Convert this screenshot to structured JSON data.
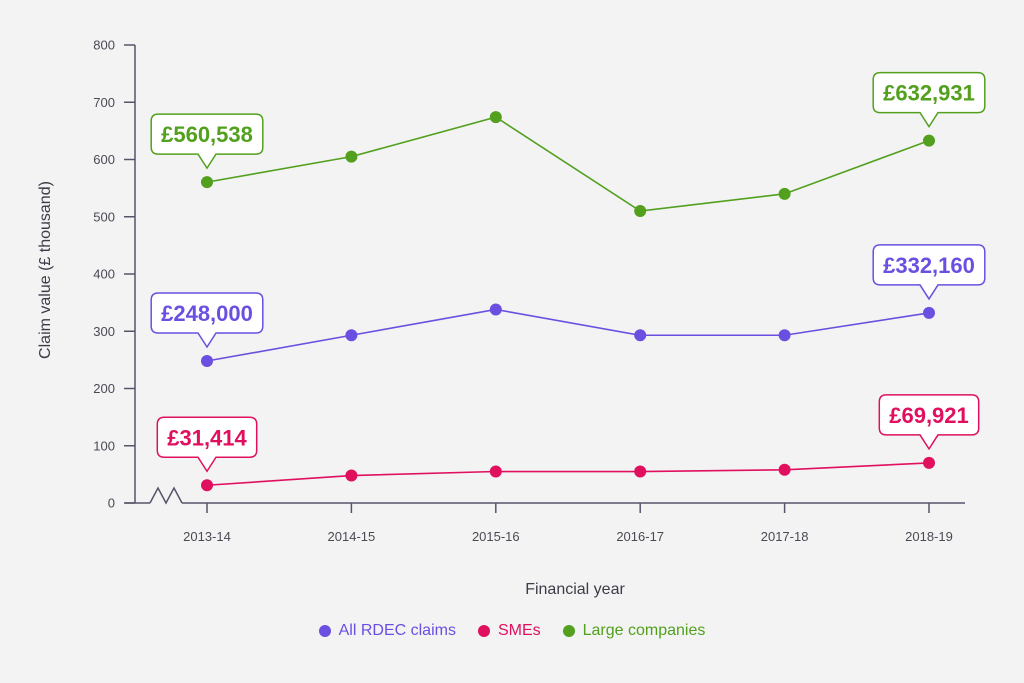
{
  "chart_data": {
    "type": "line",
    "xlabel": "Financial year",
    "ylabel": "Claim value (£ thousand)",
    "ylim": [
      0,
      800
    ],
    "yticks": [
      0,
      100,
      200,
      300,
      400,
      500,
      600,
      700,
      800
    ],
    "categories": [
      "2013-14",
      "2014-15",
      "2015-16",
      "2016-17",
      "2017-18",
      "2018-19"
    ],
    "axis_break": true,
    "grid": false,
    "legend_position": "bottom",
    "series": [
      {
        "name": "All RDEC claims",
        "color": "#6b4fe0",
        "values": [
          248,
          293,
          338,
          293,
          293,
          332
        ]
      },
      {
        "name": "SMEs",
        "color": "#e0105f",
        "values": [
          31,
          48,
          55,
          55,
          58,
          70
        ]
      },
      {
        "name": "Large companies",
        "color": "#52a01e",
        "values": [
          560.5,
          605,
          674,
          510,
          540,
          633
        ]
      }
    ],
    "annotations": [
      {
        "series": 2,
        "index": 0,
        "text": "£560,538"
      },
      {
        "series": 2,
        "index": 5,
        "text": "£632,931"
      },
      {
        "series": 0,
        "index": 0,
        "text": "£248,000"
      },
      {
        "series": 0,
        "index": 5,
        "text": "£332,160"
      },
      {
        "series": 1,
        "index": 0,
        "text": "£31,414"
      },
      {
        "series": 1,
        "index": 5,
        "text": "£69,921"
      }
    ]
  }
}
